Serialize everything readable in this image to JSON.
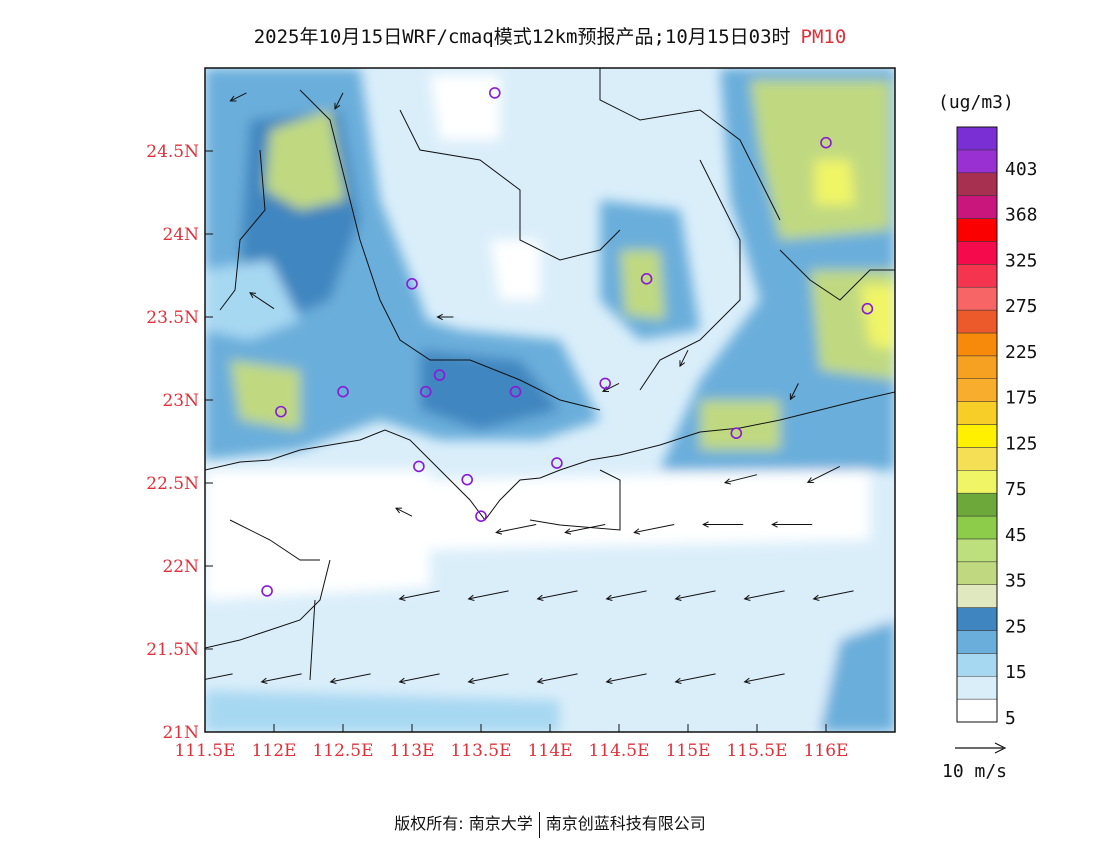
{
  "title": {
    "text": "2025年10月15日WRF/cmaq模式12km预报产品;10月15日03时",
    "variable": "PM10"
  },
  "map": {
    "lon_range": [
      111.5,
      116.5
    ],
    "lat_range": [
      21.0,
      25.0
    ],
    "x_ticks": [
      {
        "value": 111.5,
        "label": "111.5E"
      },
      {
        "value": 112.0,
        "label": "112E"
      },
      {
        "value": 112.5,
        "label": "112.5E"
      },
      {
        "value": 113.0,
        "label": "113E"
      },
      {
        "value": 113.5,
        "label": "113.5E"
      },
      {
        "value": 114.0,
        "label": "114E"
      },
      {
        "value": 114.5,
        "label": "114.5E"
      },
      {
        "value": 115.0,
        "label": "115E"
      },
      {
        "value": 115.5,
        "label": "115.5E"
      },
      {
        "value": 116.0,
        "label": "116E"
      }
    ],
    "y_ticks": [
      {
        "value": 24.5,
        "label": "24.5N"
      },
      {
        "value": 24.0,
        "label": "24N"
      },
      {
        "value": 23.5,
        "label": "23.5N"
      },
      {
        "value": 23.0,
        "label": "23N"
      },
      {
        "value": 22.5,
        "label": "22.5N"
      },
      {
        "value": 22.0,
        "label": "22N"
      },
      {
        "value": 21.5,
        "label": "21.5N"
      },
      {
        "value": 21.0,
        "label": "21N"
      }
    ],
    "stations": [
      {
        "lon": 113.6,
        "lat": 24.85
      },
      {
        "lon": 116.0,
        "lat": 24.55
      },
      {
        "lon": 113.0,
        "lat": 23.7
      },
      {
        "lon": 114.7,
        "lat": 23.73
      },
      {
        "lon": 116.3,
        "lat": 23.55
      },
      {
        "lon": 112.5,
        "lat": 23.05
      },
      {
        "lon": 113.2,
        "lat": 23.15
      },
      {
        "lon": 113.1,
        "lat": 23.05
      },
      {
        "lon": 113.75,
        "lat": 23.05
      },
      {
        "lon": 114.4,
        "lat": 23.1
      },
      {
        "lon": 112.05,
        "lat": 22.93
      },
      {
        "lon": 115.35,
        "lat": 22.8
      },
      {
        "lon": 113.05,
        "lat": 22.6
      },
      {
        "lon": 113.4,
        "lat": 22.52
      },
      {
        "lon": 114.05,
        "lat": 22.62
      },
      {
        "lon": 113.5,
        "lat": 22.3
      },
      {
        "lon": 111.95,
        "lat": 21.85
      }
    ],
    "wind_vectors": [
      {
        "lon": 111.7,
        "lat": 21.35,
        "u": -5,
        "v": -1
      },
      {
        "lon": 112.2,
        "lat": 21.35,
        "u": -5,
        "v": -1
      },
      {
        "lon": 112.7,
        "lat": 21.35,
        "u": -5,
        "v": -1
      },
      {
        "lon": 113.2,
        "lat": 21.35,
        "u": -5,
        "v": -1
      },
      {
        "lon": 113.7,
        "lat": 21.35,
        "u": -5,
        "v": -1
      },
      {
        "lon": 114.2,
        "lat": 21.35,
        "u": -5,
        "v": -1
      },
      {
        "lon": 114.7,
        "lat": 21.35,
        "u": -5,
        "v": -1
      },
      {
        "lon": 115.2,
        "lat": 21.35,
        "u": -5,
        "v": -1
      },
      {
        "lon": 115.7,
        "lat": 21.35,
        "u": -5,
        "v": -1
      },
      {
        "lon": 113.2,
        "lat": 21.85,
        "u": -5,
        "v": -1
      },
      {
        "lon": 113.7,
        "lat": 21.85,
        "u": -5,
        "v": -1
      },
      {
        "lon": 114.2,
        "lat": 21.85,
        "u": -5,
        "v": -1
      },
      {
        "lon": 114.7,
        "lat": 21.85,
        "u": -5,
        "v": -1
      },
      {
        "lon": 115.2,
        "lat": 21.85,
        "u": -5,
        "v": -1
      },
      {
        "lon": 115.7,
        "lat": 21.85,
        "u": -5,
        "v": -1
      },
      {
        "lon": 116.2,
        "lat": 21.85,
        "u": -5,
        "v": -1
      },
      {
        "lon": 113.9,
        "lat": 22.25,
        "u": -5,
        "v": -1
      },
      {
        "lon": 114.4,
        "lat": 22.25,
        "u": -5,
        "v": -1
      },
      {
        "lon": 114.9,
        "lat": 22.25,
        "u": -5,
        "v": -1
      },
      {
        "lon": 115.4,
        "lat": 22.25,
        "u": -5,
        "v": 0
      },
      {
        "lon": 115.9,
        "lat": 22.25,
        "u": -5,
        "v": 0
      },
      {
        "lon": 115.5,
        "lat": 22.55,
        "u": -4,
        "v": -1
      },
      {
        "lon": 116.1,
        "lat": 22.6,
        "u": -4,
        "v": -2
      },
      {
        "lon": 112.0,
        "lat": 23.55,
        "u": -3,
        "v": 2
      },
      {
        "lon": 111.8,
        "lat": 24.85,
        "u": -2,
        "v": -1
      },
      {
        "lon": 112.5,
        "lat": 24.85,
        "u": -1,
        "v": -2
      },
      {
        "lon": 113.3,
        "lat": 23.5,
        "u": -2,
        "v": 0
      },
      {
        "lon": 114.5,
        "lat": 23.1,
        "u": -2,
        "v": -1
      },
      {
        "lon": 115.0,
        "lat": 23.3,
        "u": -1,
        "v": -2
      },
      {
        "lon": 115.8,
        "lat": 23.1,
        "u": -1,
        "v": -2
      },
      {
        "lon": 113.0,
        "lat": 22.3,
        "u": -2,
        "v": 1
      }
    ]
  },
  "colorbar": {
    "unit": "(ug/m3)",
    "levels": [
      {
        "color": "#ffffff",
        "label": "5"
      },
      {
        "color": "#daeefa",
        "label": ""
      },
      {
        "color": "#a7d8f2",
        "label": "15"
      },
      {
        "color": "#6aaedb",
        "label": ""
      },
      {
        "color": "#3f86c0",
        "label": "25"
      },
      {
        "color": "#dfe8bf",
        "label": ""
      },
      {
        "color": "#c0d981",
        "label": "35"
      },
      {
        "color": "#bde07c",
        "label": ""
      },
      {
        "color": "#8ccc4a",
        "label": "45"
      },
      {
        "color": "#6ca93a",
        "label": ""
      },
      {
        "color": "#f0f566",
        "label": "75"
      },
      {
        "color": "#f5df55",
        "label": ""
      },
      {
        "color": "#fff000",
        "label": "125"
      },
      {
        "color": "#f7ce28",
        "label": ""
      },
      {
        "color": "#f8ad2c",
        "label": "175"
      },
      {
        "color": "#f7a122",
        "label": ""
      },
      {
        "color": "#f78a0a",
        "label": "225"
      },
      {
        "color": "#ec5a2c",
        "label": ""
      },
      {
        "color": "#f86567",
        "label": "275"
      },
      {
        "color": "#f5344f",
        "label": ""
      },
      {
        "color": "#f50a4b",
        "label": "325"
      },
      {
        "color": "#fb0000",
        "label": ""
      },
      {
        "color": "#c8167d",
        "label": "368"
      },
      {
        "color": "#a73051",
        "label": ""
      },
      {
        "color": "#9930d1",
        "label": "403"
      },
      {
        "color": "#7a2fd4",
        "label": ""
      }
    ],
    "wind_scale_label": "10 m/s"
  },
  "footer": {
    "left": "版权所有: 南京大学",
    "right": "南京创蓝科技有限公司"
  }
}
